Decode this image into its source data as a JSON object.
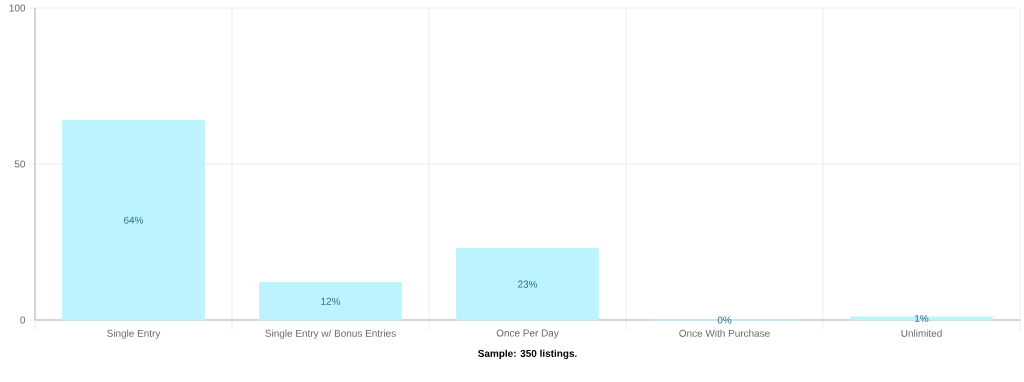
{
  "chart_data": {
    "type": "bar",
    "categories": [
      "Single Entry",
      "Single Entry w/ Bonus Entries",
      "Once Per Day",
      "Once With Purchase",
      "Unlimited"
    ],
    "values": [
      64,
      12,
      23,
      0,
      1
    ],
    "value_labels": [
      "64%",
      "12%",
      "23%",
      "0%",
      "1%"
    ],
    "color": "#bdf3fd",
    "ylim": [
      0,
      100
    ],
    "yticks": [
      0,
      50,
      100
    ],
    "grid": true,
    "xlabel": "Sample: 350 listings."
  }
}
